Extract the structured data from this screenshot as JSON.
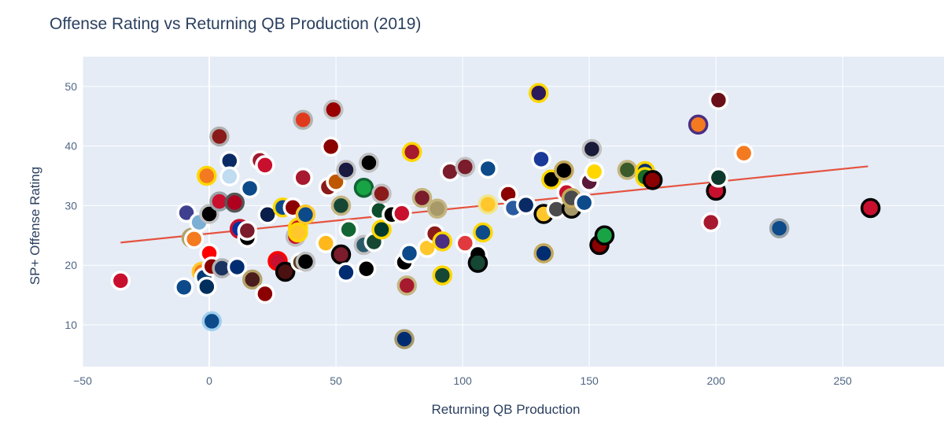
{
  "chart_data": {
    "type": "scatter",
    "title": "Offense Rating vs Returning QB Production (2019)",
    "xlabel": "Returning QB Production",
    "ylabel": "SP+ Offense Rating",
    "xlim": [
      -50,
      290
    ],
    "ylim": [
      3,
      55
    ],
    "xticks": [
      -50,
      0,
      50,
      100,
      150,
      200,
      250
    ],
    "yticks": [
      10,
      20,
      30,
      40,
      50
    ],
    "grid": true,
    "trendline": {
      "x": [
        -35,
        260
      ],
      "y": [
        23.8,
        36.6
      ],
      "color": "#e5533f"
    },
    "points": [
      {
        "x": -35,
        "y": 17.4,
        "fill": "#c8102e",
        "ring": "#ffffff"
      },
      {
        "x": -10,
        "y": 16.3,
        "fill": "#0c4a8a",
        "ring": "#ffffff"
      },
      {
        "x": -9,
        "y": 28.8,
        "fill": "#3f3f8f",
        "ring": "#ffffff"
      },
      {
        "x": -7,
        "y": 24.6,
        "fill": "#003366",
        "ring": "#b3a369"
      },
      {
        "x": -6,
        "y": 24.4,
        "fill": "#f47a20",
        "ring": "#ffffff"
      },
      {
        "x": -4,
        "y": 27.2,
        "fill": "#7bafd4",
        "ring": "#ffffff"
      },
      {
        "x": -3,
        "y": 18.9,
        "fill": "#f47a20",
        "ring": "#ffc72c"
      },
      {
        "x": -2,
        "y": 18.0,
        "fill": "#003a70",
        "ring": "#ffffff"
      },
      {
        "x": -1,
        "y": 35.0,
        "fill": "#f47a20",
        "ring": "#ffd700"
      },
      {
        "x": -1,
        "y": 16.4,
        "fill": "#002e5d",
        "ring": "#ffffff"
      },
      {
        "x": 0,
        "y": 22.0,
        "fill": "#ff0000",
        "ring": "#ffffff"
      },
      {
        "x": 0,
        "y": 28.6,
        "fill": "#000000",
        "ring": "#c0c0c0"
      },
      {
        "x": 1,
        "y": 10.6,
        "fill": "#0c4a8a",
        "ring": "#9fcfee"
      },
      {
        "x": 1,
        "y": 19.8,
        "fill": "#8b0000",
        "ring": "#ffffff"
      },
      {
        "x": 4,
        "y": 30.7,
        "fill": "#c8102e",
        "ring": "#9aa3a8"
      },
      {
        "x": 4,
        "y": 41.6,
        "fill": "#8b1a1a",
        "ring": "#b0b0b0"
      },
      {
        "x": 5,
        "y": 19.5,
        "fill": "#1b3360",
        "ring": "#b3b3b3"
      },
      {
        "x": 8,
        "y": 37.5,
        "fill": "#0a2a66",
        "ring": "#ffffff"
      },
      {
        "x": 8,
        "y": 34.9,
        "fill": "#bfdcf0",
        "ring": "#ffffff"
      },
      {
        "x": 10,
        "y": 30.5,
        "fill": "#b00020",
        "ring": "#555555"
      },
      {
        "x": 11,
        "y": 19.7,
        "fill": "#002d72",
        "ring": "#ffffff"
      },
      {
        "x": 12,
        "y": 26.1,
        "fill": "#0033a0",
        "ring": "#c8102e"
      },
      {
        "x": 15,
        "y": 24.6,
        "fill": "#000000",
        "ring": "#ffffff"
      },
      {
        "x": 15,
        "y": 25.8,
        "fill": "#7a1c2b",
        "ring": "#ffffff"
      },
      {
        "x": 16,
        "y": 32.9,
        "fill": "#0c4a8a",
        "ring": "#ffffff"
      },
      {
        "x": 17,
        "y": 17.6,
        "fill": "#4b1c1c",
        "ring": "#b3a369"
      },
      {
        "x": 20,
        "y": 37.6,
        "fill": "#9e1b32",
        "ring": "#ffffff"
      },
      {
        "x": 22,
        "y": 36.8,
        "fill": "#c8102e",
        "ring": "#ffffff"
      },
      {
        "x": 22,
        "y": 15.2,
        "fill": "#8b0000",
        "ring": "#ffffff"
      },
      {
        "x": 23,
        "y": 28.5,
        "fill": "#0a1e4b",
        "ring": "#ffffff"
      },
      {
        "x": 27,
        "y": 20.7,
        "fill": "#c8102e",
        "ring": "#ff0000"
      },
      {
        "x": 29,
        "y": 29.7,
        "fill": "#0c4a8a",
        "ring": "#ffd700"
      },
      {
        "x": 30,
        "y": 18.9,
        "fill": "#4b1010",
        "ring": "#000000"
      },
      {
        "x": 33,
        "y": 29.7,
        "fill": "#8b0000",
        "ring": "#ffffff"
      },
      {
        "x": 34,
        "y": 24.8,
        "fill": "#c8102e",
        "ring": "#c0c0c0"
      },
      {
        "x": 35,
        "y": 26.3,
        "fill": "#c8102e",
        "ring": "#ffd700"
      },
      {
        "x": 35,
        "y": 25.5,
        "fill": "#ffc72c",
        "ring": "#ffd700"
      },
      {
        "x": 36,
        "y": 20.5,
        "fill": "#5b3a1a",
        "ring": "#ffffff"
      },
      {
        "x": 37,
        "y": 34.7,
        "fill": "#a6192e",
        "ring": "#ffffff"
      },
      {
        "x": 37,
        "y": 44.4,
        "fill": "#e03a1e",
        "ring": "#b3b3b3"
      },
      {
        "x": 38,
        "y": 20.6,
        "fill": "#000000",
        "ring": "#c0c0c0"
      },
      {
        "x": 38,
        "y": 28.5,
        "fill": "#0c4a8a",
        "ring": "#ffc72c"
      },
      {
        "x": 46,
        "y": 23.7,
        "fill": "#ffb81c",
        "ring": "#ffffff"
      },
      {
        "x": 47,
        "y": 33.1,
        "fill": "#8b1a1a",
        "ring": "#ffffff"
      },
      {
        "x": 48,
        "y": 39.9,
        "fill": "#8b0000",
        "ring": "#ffffff"
      },
      {
        "x": 49,
        "y": 46.1,
        "fill": "#990000",
        "ring": "#c0c0c0"
      },
      {
        "x": 50,
        "y": 34.0,
        "fill": "#bf5700",
        "ring": "#ffffff"
      },
      {
        "x": 52,
        "y": 21.8,
        "fill": "#7a1c2b",
        "ring": "#000000"
      },
      {
        "x": 52,
        "y": 30.0,
        "fill": "#154734",
        "ring": "#c4b581"
      },
      {
        "x": 54,
        "y": 18.8,
        "fill": "#002d72",
        "ring": "#ffffff"
      },
      {
        "x": 54,
        "y": 36.0,
        "fill": "#1a1a40",
        "ring": "#c0c0c0"
      },
      {
        "x": 55,
        "y": 26.0,
        "fill": "#116633",
        "ring": "#ffffff"
      },
      {
        "x": 61,
        "y": 33.0,
        "fill": "#18a345",
        "ring": "#116633"
      },
      {
        "x": 61,
        "y": 23.4,
        "fill": "#2a5a6a",
        "ring": "#c0c0c0"
      },
      {
        "x": 62,
        "y": 19.4,
        "fill": "#000000",
        "ring": "#ffffff"
      },
      {
        "x": 63,
        "y": 37.2,
        "fill": "#000000",
        "ring": "#c0c0c0"
      },
      {
        "x": 65,
        "y": 23.9,
        "fill": "#154734",
        "ring": "#ffffff"
      },
      {
        "x": 67,
        "y": 29.2,
        "fill": "#0d4d2d",
        "ring": "#ffffff"
      },
      {
        "x": 68,
        "y": 32.0,
        "fill": "#8b1a1a",
        "ring": "#c0c0c0"
      },
      {
        "x": 68,
        "y": 26.0,
        "fill": "#003a2c",
        "ring": "#ffd700"
      },
      {
        "x": 72,
        "y": 28.5,
        "fill": "#000000",
        "ring": "#ffffff"
      },
      {
        "x": 76,
        "y": 28.7,
        "fill": "#c8102e",
        "ring": "#ffffff"
      },
      {
        "x": 77,
        "y": 20.5,
        "fill": "#000000",
        "ring": "#ffffff"
      },
      {
        "x": 77,
        "y": 7.6,
        "fill": "#002d72",
        "ring": "#a89968"
      },
      {
        "x": 78,
        "y": 16.6,
        "fill": "#a6192e",
        "ring": "#c4b581"
      },
      {
        "x": 79,
        "y": 22.0,
        "fill": "#0c4a8a",
        "ring": "#ffffff"
      },
      {
        "x": 80,
        "y": 39.0,
        "fill": "#a6192e",
        "ring": "#ffd700"
      },
      {
        "x": 84,
        "y": 31.3,
        "fill": "#7a1c2b",
        "ring": "#c4b581"
      },
      {
        "x": 86,
        "y": 22.9,
        "fill": "#ffc72c",
        "ring": "#ffffff"
      },
      {
        "x": 89,
        "y": 25.3,
        "fill": "#8b1a1a",
        "ring": "#ffffff"
      },
      {
        "x": 90,
        "y": 29.5,
        "fill": "#a89968",
        "ring": "#c4b581"
      },
      {
        "x": 92,
        "y": 24.0,
        "fill": "#4b2e83",
        "ring": "#ffd700"
      },
      {
        "x": 92,
        "y": 18.3,
        "fill": "#154734",
        "ring": "#ffd700"
      },
      {
        "x": 95,
        "y": 35.7,
        "fill": "#7a1c2b",
        "ring": "#ffffff"
      },
      {
        "x": 101,
        "y": 23.7,
        "fill": "#e03a3e",
        "ring": "#ffffff"
      },
      {
        "x": 101,
        "y": 36.5,
        "fill": "#7a1c2b",
        "ring": "#c0c0c0"
      },
      {
        "x": 106,
        "y": 21.8,
        "fill": "#000000",
        "ring": "#ffffff"
      },
      {
        "x": 106,
        "y": 20.4,
        "fill": "#154734",
        "ring": "#000000"
      },
      {
        "x": 108,
        "y": 25.5,
        "fill": "#0c4a8a",
        "ring": "#ffd700"
      },
      {
        "x": 110,
        "y": 36.2,
        "fill": "#0c4a8a",
        "ring": "#ffffff"
      },
      {
        "x": 110,
        "y": 30.2,
        "fill": "#ffc72c",
        "ring": "#f0e68c"
      },
      {
        "x": 118,
        "y": 31.9,
        "fill": "#8b0000",
        "ring": "#ffffff"
      },
      {
        "x": 120,
        "y": 29.6,
        "fill": "#2a5aa0",
        "ring": "#ffffff"
      },
      {
        "x": 125,
        "y": 30.1,
        "fill": "#0a2a66",
        "ring": "#ffffff"
      },
      {
        "x": 130,
        "y": 48.9,
        "fill": "#2d1a5a",
        "ring": "#ffd700"
      },
      {
        "x": 131,
        "y": 37.8,
        "fill": "#1a3a9a",
        "ring": "#ffffff"
      },
      {
        "x": 132,
        "y": 28.6,
        "fill": "#ffc72c",
        "ring": "#000000"
      },
      {
        "x": 132,
        "y": 22.0,
        "fill": "#002d72",
        "ring": "#c4a85a"
      },
      {
        "x": 135,
        "y": 34.4,
        "fill": "#000000",
        "ring": "#ffd700"
      },
      {
        "x": 137,
        "y": 29.4,
        "fill": "#4b4b4b",
        "ring": "#ffffff"
      },
      {
        "x": 140,
        "y": 35.9,
        "fill": "#000000",
        "ring": "#c4a85a"
      },
      {
        "x": 141,
        "y": 32.2,
        "fill": "#c8102e",
        "ring": "#ffffff"
      },
      {
        "x": 143,
        "y": 29.5,
        "fill": "#a89968",
        "ring": "#000000"
      },
      {
        "x": 143,
        "y": 31.3,
        "fill": "#4b4b4b",
        "ring": "#c4a85a"
      },
      {
        "x": 148,
        "y": 30.5,
        "fill": "#0c4a8a",
        "ring": "#ffffff"
      },
      {
        "x": 150,
        "y": 34.0,
        "fill": "#5a1a3a",
        "ring": "#ffffff"
      },
      {
        "x": 151,
        "y": 39.5,
        "fill": "#1a1a3a",
        "ring": "#c0c0c0"
      },
      {
        "x": 152,
        "y": 35.7,
        "fill": "#ffd700",
        "ring": "#ffffff"
      },
      {
        "x": 154,
        "y": 23.4,
        "fill": "#8b0000",
        "ring": "#000000"
      },
      {
        "x": 156,
        "y": 25.0,
        "fill": "#18a345",
        "ring": "#000000"
      },
      {
        "x": 165,
        "y": 36.0,
        "fill": "#3a5a2a",
        "ring": "#c4b581"
      },
      {
        "x": 172,
        "y": 35.8,
        "fill": "#002d72",
        "ring": "#ffd700"
      },
      {
        "x": 172,
        "y": 34.8,
        "fill": "#1a6a2a",
        "ring": "#ffd700"
      },
      {
        "x": 175,
        "y": 34.3,
        "fill": "#8b0000",
        "ring": "#000000"
      },
      {
        "x": 193,
        "y": 43.6,
        "fill": "#f47a20",
        "ring": "#4b2e83"
      },
      {
        "x": 198,
        "y": 27.2,
        "fill": "#a6192e",
        "ring": "#ffffff"
      },
      {
        "x": 200,
        "y": 32.5,
        "fill": "#c8102e",
        "ring": "#000000"
      },
      {
        "x": 201,
        "y": 47.7,
        "fill": "#6b0f1a",
        "ring": "#ffffff"
      },
      {
        "x": 201,
        "y": 34.7,
        "fill": "#0d3a2d",
        "ring": "#ffffff"
      },
      {
        "x": 211,
        "y": 38.8,
        "fill": "#f47a20",
        "ring": "#ffffff"
      },
      {
        "x": 225,
        "y": 26.2,
        "fill": "#0c4a8a",
        "ring": "#9aa3a8"
      },
      {
        "x": 261,
        "y": 29.6,
        "fill": "#c8102e",
        "ring": "#000000"
      }
    ]
  }
}
